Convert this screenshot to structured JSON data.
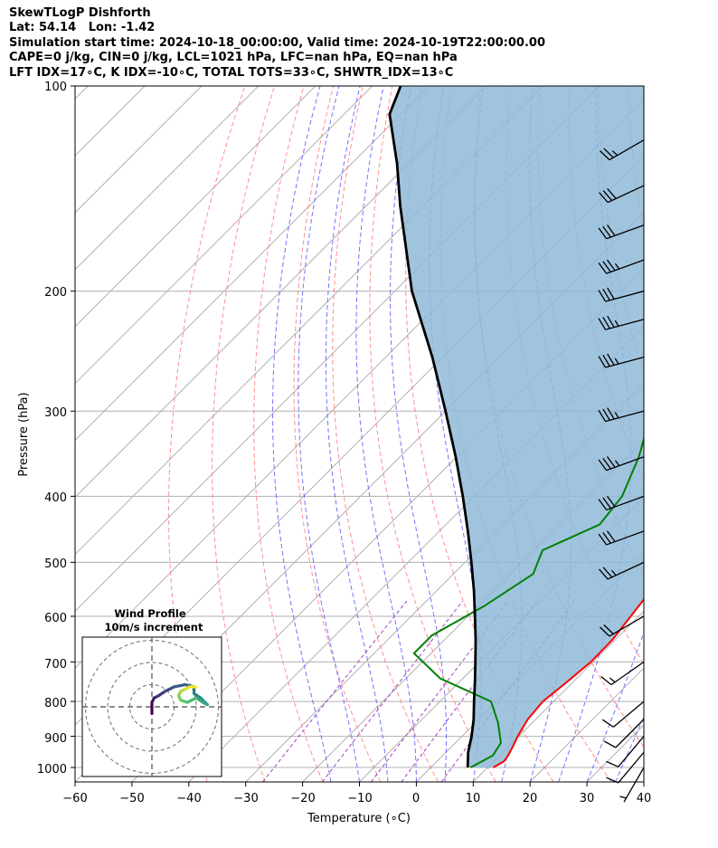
{
  "header": {
    "lines": [
      "SkewTLogP Dishforth",
      "Lat: 54.14   Lon: -1.42",
      "Simulation start time: 2024-10-18_00:00:00, Valid time: 2024-10-19T22:00:00.00",
      "CAPE=0 j/kg, CIN=0 j/kg, LCL=1021 hPa, LFC=nan hPa, EQ=nan hPa",
      "LFT IDX=17∘C, K IDX=-10∘C, TOTAL TOTS=33∘C, SHWTR_IDX=13∘C"
    ]
  },
  "chart_data": {
    "type": "skewt-logp",
    "xlabel": "Temperature (∘C)",
    "ylabel": "Pressure (hPa)",
    "xlim": [
      -60,
      40
    ],
    "ylim": [
      1050,
      100
    ],
    "x_ticks": [
      "−60",
      "−50",
      "−40",
      "−30",
      "−20",
      "−10",
      "0",
      "10",
      "20",
      "30",
      "40"
    ],
    "y_ticks": [
      "100",
      "200",
      "300",
      "400",
      "500",
      "600",
      "700",
      "800",
      "900",
      "1000"
    ],
    "y_tick_values": [
      100,
      200,
      300,
      400,
      500,
      600,
      700,
      800,
      900,
      1000
    ],
    "grid": true,
    "colors": {
      "temperature": "#ff0000",
      "dewpoint": "#008000",
      "parcel": "#000000",
      "shading": "#8fbad8",
      "dry_adiabats": "#ff6b6b",
      "moist_adiabats": "#5a5aff",
      "mixing_ratio": "#a040c0",
      "isotherms": "#b0b0b0"
    },
    "series": [
      {
        "name": "temperature",
        "points": [
          [
            11,
            1000
          ],
          [
            11.8,
            980
          ],
          [
            11.5,
            960
          ],
          [
            10.7,
            930
          ],
          [
            9.8,
            900
          ],
          [
            8.6,
            850
          ],
          [
            8.1,
            800
          ],
          [
            8.9,
            750
          ],
          [
            9.6,
            700
          ],
          [
            9.5,
            650
          ],
          [
            8.6,
            600
          ],
          [
            7.6,
            550
          ],
          [
            6.6,
            500
          ],
          [
            5.3,
            450
          ],
          [
            3.4,
            400
          ],
          [
            0.3,
            350
          ],
          [
            -2.5,
            300
          ],
          [
            -4.6,
            250
          ],
          [
            -5.5,
            200
          ],
          [
            -5.7,
            180
          ],
          [
            -5.6,
            160
          ],
          [
            -5.6,
            150
          ],
          [
            -5.7,
            140
          ],
          [
            -3.6,
            130
          ],
          [
            -1.4,
            120
          ],
          [
            0.8,
            110
          ],
          [
            2.8,
            100
          ]
        ]
      },
      {
        "name": "dewpoint",
        "points": [
          [
            7,
            1000
          ],
          [
            8.8,
            960
          ],
          [
            8,
            920
          ],
          [
            4,
            860
          ],
          [
            -1,
            800
          ],
          [
            -14,
            740
          ],
          [
            -23,
            680
          ],
          [
            -23,
            640
          ],
          [
            -19,
            580
          ],
          [
            -16,
            520
          ],
          [
            -18.5,
            480
          ],
          [
            -13,
            440
          ],
          [
            -14,
            400
          ],
          [
            -18,
            350
          ],
          [
            -25,
            290
          ],
          [
            -27.2,
            250
          ],
          [
            -30.2,
            210
          ],
          [
            -30.5,
            190
          ],
          [
            -30.1,
            180
          ],
          [
            -31.5,
            160
          ],
          [
            -32.9,
            150
          ],
          [
            -34.7,
            140
          ],
          [
            -34,
            130
          ],
          [
            -30,
            120
          ],
          [
            -25.5,
            110
          ],
          [
            -23,
            100
          ]
        ]
      },
      {
        "name": "parcel",
        "points": [
          [
            6.5,
            1000
          ],
          [
            3.9,
            950
          ],
          [
            1.7,
            900
          ],
          [
            -0.9,
            850
          ],
          [
            -4,
            800
          ],
          [
            -7.2,
            750
          ],
          [
            -10.7,
            700
          ],
          [
            -14.5,
            650
          ],
          [
            -18.8,
            600
          ],
          [
            -23.5,
            550
          ],
          [
            -28.9,
            500
          ],
          [
            -35,
            450
          ],
          [
            -42,
            400
          ],
          [
            -50.2,
            350
          ],
          [
            -60,
            300
          ],
          [
            -71.8,
            250
          ],
          [
            -87,
            200
          ],
          [
            -104,
            150
          ],
          [
            -112,
            130
          ],
          [
            -122,
            110
          ],
          [
            -125,
            100
          ]
        ]
      }
    ],
    "wind_barbs": [
      {
        "p": 1000,
        "speed_kt": 5,
        "dir": 210
      },
      {
        "p": 950,
        "speed_kt": 10,
        "dir": 220
      },
      {
        "p": 900,
        "speed_kt": 10,
        "dir": 220
      },
      {
        "p": 850,
        "speed_kt": 10,
        "dir": 225
      },
      {
        "p": 800,
        "speed_kt": 10,
        "dir": 230
      },
      {
        "p": 700,
        "speed_kt": 15,
        "dir": 235
      },
      {
        "p": 600,
        "speed_kt": 20,
        "dir": 240
      },
      {
        "p": 500,
        "speed_kt": 25,
        "dir": 245
      },
      {
        "p": 450,
        "speed_kt": 30,
        "dir": 250
      },
      {
        "p": 400,
        "speed_kt": 30,
        "dir": 250
      },
      {
        "p": 350,
        "speed_kt": 35,
        "dir": 250
      },
      {
        "p": 300,
        "speed_kt": 35,
        "dir": 255
      },
      {
        "p": 250,
        "speed_kt": 35,
        "dir": 255
      },
      {
        "p": 220,
        "speed_kt": 35,
        "dir": 255
      },
      {
        "p": 200,
        "speed_kt": 30,
        "dir": 255
      },
      {
        "p": 180,
        "speed_kt": 35,
        "dir": 250
      },
      {
        "p": 160,
        "speed_kt": 30,
        "dir": 250
      },
      {
        "p": 140,
        "speed_kt": 30,
        "dir": 245
      },
      {
        "p": 120,
        "speed_kt": 25,
        "dir": 240
      }
    ],
    "hodograph": {
      "title": "Wind Profile",
      "subtitle": "10m/s increment",
      "rings": [
        10,
        20,
        30
      ],
      "points_uv": [
        [
          0,
          -3
        ],
        [
          0,
          2
        ],
        [
          1,
          4
        ],
        [
          3,
          5
        ],
        [
          6,
          7
        ],
        [
          10,
          9
        ],
        [
          15,
          10
        ],
        [
          19,
          9
        ],
        [
          19,
          6
        ],
        [
          22,
          4
        ],
        [
          25,
          1
        ],
        [
          23,
          2
        ],
        [
          20,
          4
        ],
        [
          16,
          2
        ],
        [
          13,
          3
        ],
        [
          12,
          5
        ],
        [
          13,
          7
        ],
        [
          15,
          8
        ],
        [
          17,
          9
        ],
        [
          20,
          9
        ]
      ]
    }
  }
}
